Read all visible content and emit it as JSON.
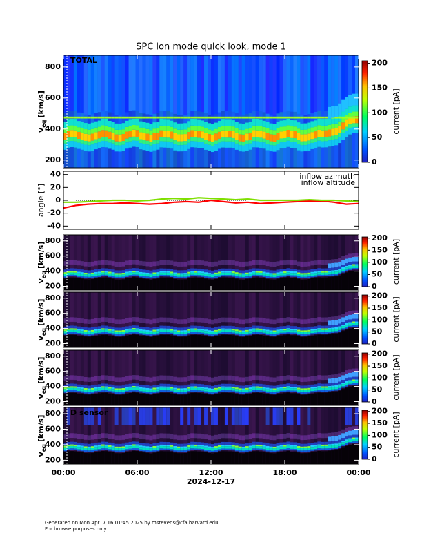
{
  "title": "SPC ion mode quick look, mode 1",
  "x_axis": {
    "xlim": [
      0,
      24
    ],
    "xticks": [
      {
        "value": 0,
        "label": "00:00"
      },
      {
        "value": 6,
        "label": "06:00"
      },
      {
        "value": 12,
        "label": "12:00"
      },
      {
        "value": 18,
        "label": "18:00"
      },
      {
        "value": 24,
        "label": "00:00"
      }
    ],
    "xlabel": "2024-12-17"
  },
  "chart_data": [
    {
      "type": "heatmap",
      "label": "TOTAL",
      "style": "total",
      "ylabel": [
        "v",
        "eq",
        "[km/s]"
      ],
      "ylim": [
        150,
        875
      ],
      "yticks": [
        200,
        400,
        600,
        800
      ],
      "colorbar_label": "current [pA]",
      "clim": [
        0,
        205
      ],
      "cticks": [
        0,
        50,
        100,
        150,
        200
      ]
    },
    {
      "type": "line",
      "ylabel": "angle [°]",
      "ylim": [
        -45,
        45
      ],
      "yticks": [
        40,
        20,
        0,
        -20,
        -40
      ],
      "x": [
        0,
        1,
        2,
        3,
        4,
        5,
        6,
        7,
        8,
        9,
        10,
        11,
        12,
        13,
        14,
        15,
        16,
        17,
        18,
        19,
        20,
        21,
        22,
        23,
        24
      ],
      "series": [
        {
          "name": "inflow azimuth",
          "color": "#ff0000",
          "values": [
            -12,
            -8,
            -6,
            -5,
            -5,
            -4,
            -5,
            -6,
            -5,
            -3,
            -2,
            -3,
            0,
            -2,
            -4,
            -3,
            -5,
            -4,
            -3,
            -2,
            -1,
            -1,
            -3,
            -6,
            -5
          ]
        },
        {
          "name": "inflow altitude",
          "color": "#7fdf00",
          "values": [
            -3,
            -3,
            -2,
            -1,
            0,
            0,
            -1,
            0,
            2,
            3,
            2,
            4,
            3,
            2,
            1,
            2,
            0,
            0,
            0,
            0,
            1,
            0,
            0,
            -1,
            -2
          ]
        }
      ]
    },
    {
      "type": "heatmap",
      "style": "sensor",
      "ylabel": [
        "v",
        "eq",
        "[km/s]"
      ],
      "ylim": [
        150,
        880
      ],
      "yticks": [
        200,
        400,
        600,
        800
      ],
      "colorbar_label": "current [pA]",
      "clim": [
        0,
        205
      ],
      "cticks": [
        0,
        50,
        100,
        150,
        200
      ]
    },
    {
      "type": "heatmap",
      "style": "sensor",
      "ylabel": [
        "v",
        "eq",
        "[km/s]"
      ],
      "ylim": [
        150,
        880
      ],
      "yticks": [
        200,
        400,
        600,
        800
      ],
      "colorbar_label": "current [pA]",
      "clim": [
        0,
        205
      ],
      "cticks": [
        0,
        50,
        100,
        150,
        200
      ]
    },
    {
      "type": "heatmap",
      "style": "sensor",
      "ylabel": [
        "v",
        "eq",
        "[km/s]"
      ],
      "ylim": [
        150,
        880
      ],
      "yticks": [
        200,
        400,
        600,
        800
      ],
      "colorbar_label": "current [pA]",
      "clim": [
        0,
        205
      ],
      "cticks": [
        0,
        50,
        100,
        150,
        200
      ]
    },
    {
      "type": "heatmap",
      "label": "D sensor",
      "style": "dsensor",
      "ylabel": [
        "v",
        "eq",
        "[km/s]"
      ],
      "ylim": [
        150,
        880
      ],
      "yticks": [
        200,
        400,
        600,
        800
      ],
      "colorbar_label": "current [pA]",
      "clim": [
        0,
        205
      ],
      "cticks": [
        0,
        50,
        100,
        150,
        200
      ]
    }
  ],
  "footer": [
    "Generated on Mon Apr  7 16:01:45 2025 by mstevens@cfa.harvard.edu",
    "For browse purposes only."
  ]
}
